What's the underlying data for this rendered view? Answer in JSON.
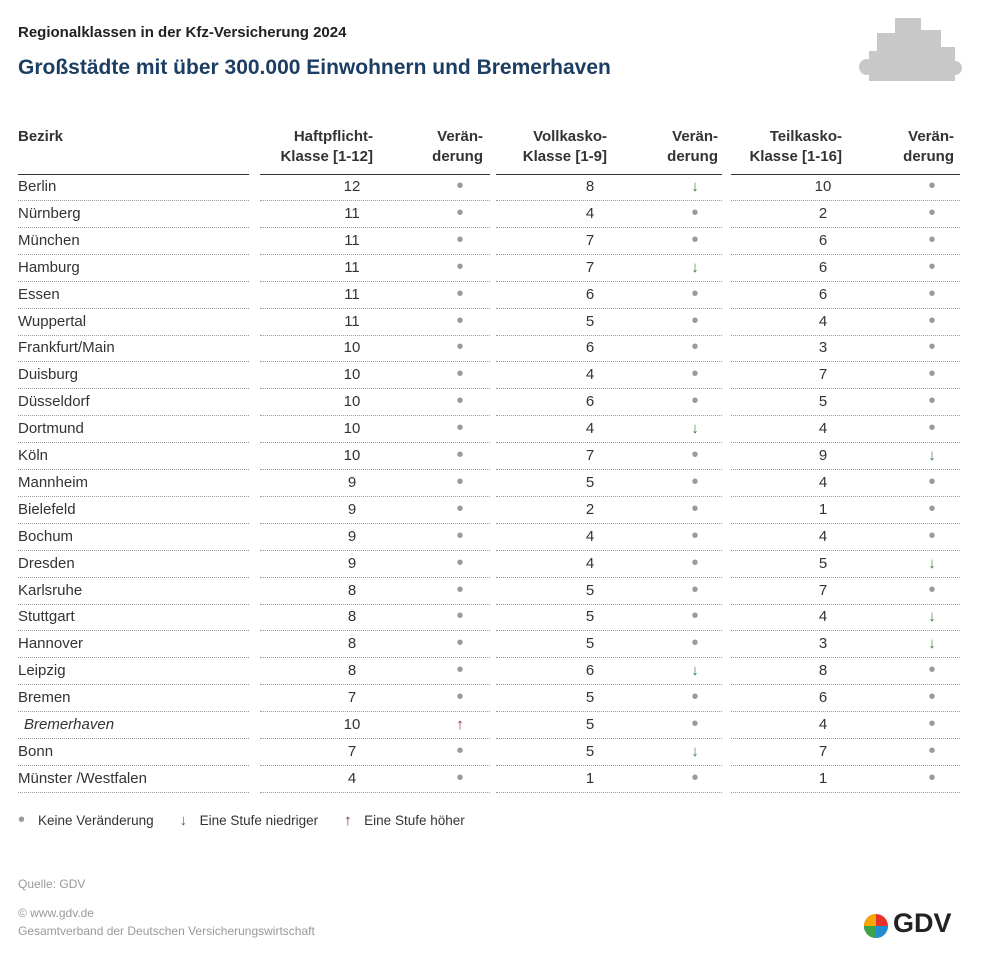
{
  "header": {
    "title": "Regionalklassen in der Kfz-Versicherung 2024",
    "subtitle": "Großstädte mit über 300.000 Einwohnern und Bremerhaven"
  },
  "table": {
    "columns": [
      [
        "Bezirk"
      ],
      [
        "Haftpflicht-",
        "Klasse [1-12]"
      ],
      [
        "Verän-",
        "derung"
      ],
      [
        "Vollkasko-",
        "Klasse [1-9]"
      ],
      [
        "Verän-",
        "derung"
      ],
      [
        "Teilkasko-",
        "Klasse [1-16]"
      ],
      [
        "Verän-",
        "derung"
      ]
    ],
    "rows": [
      [
        "Berlin",
        12,
        "•",
        8,
        "↓",
        10,
        "•"
      ],
      [
        "Nürnberg",
        11,
        "•",
        4,
        "•",
        2,
        "•"
      ],
      [
        "München",
        11,
        "•",
        7,
        "•",
        6,
        "•"
      ],
      [
        "Hamburg",
        11,
        "•",
        7,
        "↓",
        6,
        "•"
      ],
      [
        "Essen",
        11,
        "•",
        6,
        "•",
        6,
        "•"
      ],
      [
        "Wuppertal",
        11,
        "•",
        5,
        "•",
        4,
        "•"
      ],
      [
        "Frankfurt/Main",
        10,
        "•",
        6,
        "•",
        3,
        "•"
      ],
      [
        "Duisburg",
        10,
        "•",
        4,
        "•",
        7,
        "•"
      ],
      [
        "Düsseldorf",
        10,
        "•",
        6,
        "•",
        5,
        "•"
      ],
      [
        "Dortmund",
        10,
        "•",
        4,
        "↓",
        4,
        "•"
      ],
      [
        "Köln",
        10,
        "•",
        7,
        "•",
        9,
        "↓"
      ],
      [
        "Mannheim",
        9,
        "•",
        5,
        "•",
        4,
        "•"
      ],
      [
        "Bielefeld",
        9,
        "•",
        2,
        "•",
        1,
        "•"
      ],
      [
        "Bochum",
        9,
        "•",
        4,
        "•",
        4,
        "•"
      ],
      [
        "Dresden",
        9,
        "•",
        4,
        "•",
        5,
        "↓"
      ],
      [
        "Karlsruhe",
        8,
        "•",
        5,
        "•",
        7,
        "•"
      ],
      [
        "Stuttgart",
        8,
        "•",
        5,
        "•",
        4,
        "↓"
      ],
      [
        "Hannover",
        8,
        "•",
        5,
        "•",
        3,
        "↓"
      ],
      [
        "Leipzig",
        8,
        "•",
        6,
        "↓",
        8,
        "•"
      ],
      [
        "Bremen",
        7,
        "•",
        5,
        "•",
        6,
        "•"
      ],
      [
        "Bremerhaven",
        10,
        "↑",
        5,
        "•",
        4,
        "•"
      ],
      [
        "Bonn",
        7,
        "•",
        5,
        "↓",
        7,
        "•"
      ],
      [
        "Münster /Westfalen",
        4,
        "•",
        1,
        "•",
        1,
        "•"
      ]
    ]
  },
  "legend": [
    {
      "symbol": "•",
      "label": "Keine Veränderung"
    },
    {
      "symbol": "↓",
      "label": "Eine Stufe niedriger"
    },
    {
      "symbol": "↑",
      "label": "Eine Stufe höher"
    }
  ],
  "footer": {
    "source": "Quelle: GDV",
    "website": "© www.gdv.de",
    "org": "Gesamtverband der Deutschen Versicherungswirtschaft",
    "logo": "GDV"
  }
}
